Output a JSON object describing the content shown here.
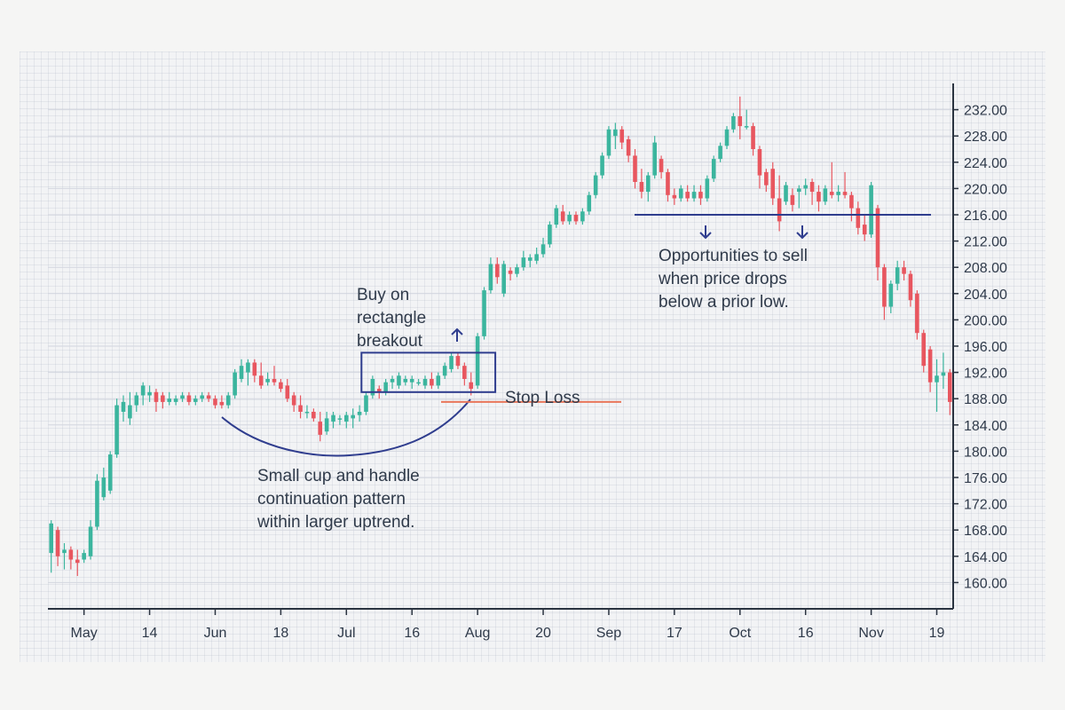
{
  "colors": {
    "up": "#3bb59e",
    "down": "#e8565f",
    "annotation": "#2f3d8e",
    "stop_loss": "#e8765a",
    "gridline": "#d3d6df",
    "axis": "#2a3340",
    "text": "#2f3a4a"
  },
  "chart_data": {
    "type": "candlestick",
    "title": "",
    "xlabel": "",
    "ylabel": "",
    "ylim": [
      156,
      236
    ],
    "y_ticks": [
      160,
      164,
      168,
      172,
      176,
      180,
      184,
      188,
      192,
      196,
      200,
      204,
      208,
      212,
      216,
      220,
      224,
      228,
      232
    ],
    "y_tick_labels": [
      "160.00",
      "164.00",
      "168.00",
      "172.00",
      "176.00",
      "180.00",
      "184.00",
      "188.00",
      "192.00",
      "196.00",
      "200.00",
      "204.00",
      "208.00",
      "212.00",
      "216.00",
      "220.00",
      "224.00",
      "228.00",
      "232.00"
    ],
    "x_ticks": [
      {
        "label": "May",
        "index": 5
      },
      {
        "label": "14",
        "index": 15
      },
      {
        "label": "Jun",
        "index": 25
      },
      {
        "label": "18",
        "index": 35
      },
      {
        "label": "Jul",
        "index": 45
      },
      {
        "label": "16",
        "index": 55
      },
      {
        "label": "Aug",
        "index": 65
      },
      {
        "label": "20",
        "index": 75
      },
      {
        "label": "Sep",
        "index": 85
      },
      {
        "label": "17",
        "index": 95
      },
      {
        "label": "Oct",
        "index": 105
      },
      {
        "label": "16",
        "index": 115
      },
      {
        "label": "Nov",
        "index": 125
      },
      {
        "label": "19",
        "index": 135
      }
    ],
    "candles": [
      {
        "o": 164.5,
        "h": 169.5,
        "l": 161.5,
        "c": 169.0
      },
      {
        "o": 168.0,
        "h": 168.5,
        "l": 162.5,
        "c": 164.0
      },
      {
        "o": 164.5,
        "h": 166.0,
        "l": 162.0,
        "c": 165.0
      },
      {
        "o": 165.0,
        "h": 165.5,
        "l": 162.0,
        "c": 163.5
      },
      {
        "o": 163.5,
        "h": 165.0,
        "l": 161.0,
        "c": 163.0
      },
      {
        "o": 163.5,
        "h": 165.0,
        "l": 163.0,
        "c": 164.5
      },
      {
        "o": 164.0,
        "h": 169.5,
        "l": 163.5,
        "c": 168.5
      },
      {
        "o": 168.5,
        "h": 176.5,
        "l": 168.0,
        "c": 175.5
      },
      {
        "o": 173.0,
        "h": 177.5,
        "l": 172.5,
        "c": 176.0
      },
      {
        "o": 174.0,
        "h": 180.0,
        "l": 173.5,
        "c": 179.5
      },
      {
        "o": 179.5,
        "h": 188.0,
        "l": 179.0,
        "c": 187.0
      },
      {
        "o": 186.0,
        "h": 188.5,
        "l": 184.5,
        "c": 187.5
      },
      {
        "o": 185.0,
        "h": 189.0,
        "l": 184.0,
        "c": 187.0
      },
      {
        "o": 187.0,
        "h": 189.0,
        "l": 186.0,
        "c": 188.5
      },
      {
        "o": 188.5,
        "h": 190.5,
        "l": 187.0,
        "c": 190.0
      },
      {
        "o": 188.5,
        "h": 190.0,
        "l": 187.5,
        "c": 189.0
      },
      {
        "o": 189.0,
        "h": 189.5,
        "l": 186.0,
        "c": 187.5
      },
      {
        "o": 188.5,
        "h": 189.0,
        "l": 186.5,
        "c": 187.5
      },
      {
        "o": 187.5,
        "h": 189.0,
        "l": 187.0,
        "c": 188.0
      },
      {
        "o": 187.5,
        "h": 188.5,
        "l": 187.0,
        "c": 188.0
      },
      {
        "o": 188.0,
        "h": 189.0,
        "l": 187.5,
        "c": 188.5
      },
      {
        "o": 188.5,
        "h": 189.0,
        "l": 187.0,
        "c": 187.5
      },
      {
        "o": 187.5,
        "h": 188.5,
        "l": 187.0,
        "c": 188.0
      },
      {
        "o": 188.0,
        "h": 189.0,
        "l": 187.5,
        "c": 188.5
      },
      {
        "o": 188.5,
        "h": 189.0,
        "l": 187.5,
        "c": 188.0
      },
      {
        "o": 188.0,
        "h": 188.5,
        "l": 186.5,
        "c": 187.0
      },
      {
        "o": 187.5,
        "h": 188.5,
        "l": 186.5,
        "c": 187.0
      },
      {
        "o": 187.0,
        "h": 189.0,
        "l": 186.5,
        "c": 188.5
      },
      {
        "o": 188.5,
        "h": 192.5,
        "l": 188.0,
        "c": 192.0
      },
      {
        "o": 191.0,
        "h": 194.0,
        "l": 190.5,
        "c": 193.0
      },
      {
        "o": 192.0,
        "h": 194.0,
        "l": 190.0,
        "c": 193.5
      },
      {
        "o": 193.5,
        "h": 194.0,
        "l": 190.5,
        "c": 191.5
      },
      {
        "o": 191.5,
        "h": 193.5,
        "l": 189.5,
        "c": 190.0
      },
      {
        "o": 190.5,
        "h": 192.0,
        "l": 190.0,
        "c": 191.0
      },
      {
        "o": 191.0,
        "h": 193.0,
        "l": 190.0,
        "c": 190.5
      },
      {
        "o": 190.5,
        "h": 191.0,
        "l": 189.0,
        "c": 189.5
      },
      {
        "o": 190.0,
        "h": 191.0,
        "l": 187.5,
        "c": 188.0
      },
      {
        "o": 188.5,
        "h": 189.0,
        "l": 186.0,
        "c": 187.0
      },
      {
        "o": 187.0,
        "h": 188.5,
        "l": 185.0,
        "c": 186.0
      },
      {
        "o": 186.0,
        "h": 187.0,
        "l": 185.0,
        "c": 186.0
      },
      {
        "o": 186.0,
        "h": 186.5,
        "l": 184.5,
        "c": 185.0
      },
      {
        "o": 184.5,
        "h": 186.0,
        "l": 181.5,
        "c": 182.5
      },
      {
        "o": 183.0,
        "h": 186.0,
        "l": 182.5,
        "c": 185.0
      },
      {
        "o": 184.5,
        "h": 186.0,
        "l": 183.5,
        "c": 185.5
      },
      {
        "o": 185.0,
        "h": 185.5,
        "l": 184.0,
        "c": 185.0
      },
      {
        "o": 184.5,
        "h": 186.0,
        "l": 183.5,
        "c": 185.5
      },
      {
        "o": 185.0,
        "h": 186.5,
        "l": 183.5,
        "c": 185.5
      },
      {
        "o": 185.5,
        "h": 187.0,
        "l": 184.5,
        "c": 186.0
      },
      {
        "o": 186.0,
        "h": 189.0,
        "l": 185.5,
        "c": 188.5
      },
      {
        "o": 188.5,
        "h": 191.5,
        "l": 188.0,
        "c": 191.0
      },
      {
        "o": 189.5,
        "h": 190.0,
        "l": 188.0,
        "c": 189.0
      },
      {
        "o": 189.0,
        "h": 191.0,
        "l": 188.5,
        "c": 190.5
      },
      {
        "o": 190.5,
        "h": 191.5,
        "l": 189.5,
        "c": 191.0
      },
      {
        "o": 190.0,
        "h": 192.0,
        "l": 189.5,
        "c": 191.5
      },
      {
        "o": 190.5,
        "h": 191.5,
        "l": 190.0,
        "c": 191.0
      },
      {
        "o": 190.5,
        "h": 191.5,
        "l": 189.5,
        "c": 191.0
      },
      {
        "o": 190.5,
        "h": 191.0,
        "l": 190.0,
        "c": 190.5
      },
      {
        "o": 190.0,
        "h": 191.5,
        "l": 189.5,
        "c": 191.0
      },
      {
        "o": 191.0,
        "h": 192.0,
        "l": 189.5,
        "c": 190.0
      },
      {
        "o": 190.0,
        "h": 192.0,
        "l": 189.5,
        "c": 191.5
      },
      {
        "o": 191.5,
        "h": 193.5,
        "l": 191.0,
        "c": 193.0
      },
      {
        "o": 192.5,
        "h": 195.0,
        "l": 192.0,
        "c": 194.5
      },
      {
        "o": 194.5,
        "h": 195.0,
        "l": 192.5,
        "c": 193.0
      },
      {
        "o": 193.0,
        "h": 193.5,
        "l": 190.0,
        "c": 191.0
      },
      {
        "o": 190.5,
        "h": 192.0,
        "l": 188.5,
        "c": 189.5
      },
      {
        "o": 190.0,
        "h": 198.0,
        "l": 189.5,
        "c": 197.5
      },
      {
        "o": 197.5,
        "h": 205.0,
        "l": 197.0,
        "c": 204.5
      },
      {
        "o": 204.5,
        "h": 209.5,
        "l": 204.0,
        "c": 208.5
      },
      {
        "o": 208.5,
        "h": 209.5,
        "l": 205.5,
        "c": 206.5
      },
      {
        "o": 204.0,
        "h": 209.0,
        "l": 203.5,
        "c": 208.5
      },
      {
        "o": 207.5,
        "h": 208.0,
        "l": 206.0,
        "c": 207.0
      },
      {
        "o": 207.0,
        "h": 208.5,
        "l": 206.5,
        "c": 208.0
      },
      {
        "o": 208.0,
        "h": 210.5,
        "l": 207.5,
        "c": 209.5
      },
      {
        "o": 209.0,
        "h": 210.0,
        "l": 208.0,
        "c": 209.5
      },
      {
        "o": 209.0,
        "h": 211.0,
        "l": 208.5,
        "c": 210.0
      },
      {
        "o": 210.0,
        "h": 212.5,
        "l": 209.5,
        "c": 211.5
      },
      {
        "o": 211.5,
        "h": 215.0,
        "l": 211.0,
        "c": 214.5
      },
      {
        "o": 214.5,
        "h": 217.5,
        "l": 214.0,
        "c": 217.0
      },
      {
        "o": 216.5,
        "h": 217.5,
        "l": 214.5,
        "c": 215.0
      },
      {
        "o": 215.0,
        "h": 216.5,
        "l": 214.5,
        "c": 216.0
      },
      {
        "o": 216.0,
        "h": 216.5,
        "l": 214.5,
        "c": 215.0
      },
      {
        "o": 215.0,
        "h": 217.0,
        "l": 214.5,
        "c": 216.5
      },
      {
        "o": 216.5,
        "h": 219.5,
        "l": 216.0,
        "c": 219.0
      },
      {
        "o": 219.0,
        "h": 222.5,
        "l": 218.5,
        "c": 222.0
      },
      {
        "o": 222.0,
        "h": 225.5,
        "l": 221.5,
        "c": 225.0
      },
      {
        "o": 225.0,
        "h": 229.5,
        "l": 224.5,
        "c": 229.0
      },
      {
        "o": 228.0,
        "h": 230.0,
        "l": 226.0,
        "c": 229.0
      },
      {
        "o": 229.0,
        "h": 229.5,
        "l": 226.0,
        "c": 227.0
      },
      {
        "o": 227.5,
        "h": 228.0,
        "l": 224.0,
        "c": 225.0
      },
      {
        "o": 225.0,
        "h": 226.0,
        "l": 220.0,
        "c": 221.0
      },
      {
        "o": 221.0,
        "h": 223.0,
        "l": 218.5,
        "c": 219.5
      },
      {
        "o": 219.5,
        "h": 222.5,
        "l": 218.0,
        "c": 222.0
      },
      {
        "o": 222.0,
        "h": 228.0,
        "l": 221.5,
        "c": 227.0
      },
      {
        "o": 224.5,
        "h": 225.0,
        "l": 221.5,
        "c": 222.5
      },
      {
        "o": 222.5,
        "h": 223.0,
        "l": 218.0,
        "c": 219.0
      },
      {
        "o": 219.0,
        "h": 220.0,
        "l": 217.5,
        "c": 218.5
      },
      {
        "o": 218.5,
        "h": 220.5,
        "l": 218.0,
        "c": 220.0
      },
      {
        "o": 219.5,
        "h": 220.5,
        "l": 218.0,
        "c": 218.5
      },
      {
        "o": 218.5,
        "h": 220.5,
        "l": 218.0,
        "c": 219.5
      },
      {
        "o": 219.5,
        "h": 220.5,
        "l": 217.5,
        "c": 218.5
      },
      {
        "o": 218.5,
        "h": 222.0,
        "l": 218.0,
        "c": 221.5
      },
      {
        "o": 221.5,
        "h": 225.0,
        "l": 221.0,
        "c": 224.5
      },
      {
        "o": 224.5,
        "h": 227.0,
        "l": 224.0,
        "c": 226.5
      },
      {
        "o": 226.5,
        "h": 229.5,
        "l": 226.0,
        "c": 229.0
      },
      {
        "o": 229.0,
        "h": 231.5,
        "l": 228.5,
        "c": 231.0
      },
      {
        "o": 231.0,
        "h": 234.0,
        "l": 227.5,
        "c": 229.5
      },
      {
        "o": 229.5,
        "h": 232.0,
        "l": 229.0,
        "c": 229.5
      },
      {
        "o": 229.5,
        "h": 230.0,
        "l": 225.0,
        "c": 226.0
      },
      {
        "o": 226.0,
        "h": 226.5,
        "l": 220.0,
        "c": 222.0
      },
      {
        "o": 222.5,
        "h": 223.0,
        "l": 219.5,
        "c": 220.5
      },
      {
        "o": 223.0,
        "h": 224.0,
        "l": 217.5,
        "c": 218.5
      },
      {
        "o": 218.5,
        "h": 222.0,
        "l": 213.5,
        "c": 215.0
      },
      {
        "o": 218.0,
        "h": 221.0,
        "l": 217.5,
        "c": 220.5
      },
      {
        "o": 219.0,
        "h": 220.0,
        "l": 216.5,
        "c": 217.5
      },
      {
        "o": 219.5,
        "h": 220.5,
        "l": 217.0,
        "c": 220.0
      },
      {
        "o": 220.0,
        "h": 221.5,
        "l": 219.0,
        "c": 220.5
      },
      {
        "o": 221.0,
        "h": 221.5,
        "l": 217.5,
        "c": 219.5
      },
      {
        "o": 219.5,
        "h": 220.5,
        "l": 216.5,
        "c": 218.0
      },
      {
        "o": 218.0,
        "h": 220.5,
        "l": 217.5,
        "c": 220.0
      },
      {
        "o": 219.5,
        "h": 224.0,
        "l": 218.5,
        "c": 219.0
      },
      {
        "o": 219.0,
        "h": 220.5,
        "l": 218.0,
        "c": 219.5
      },
      {
        "o": 219.5,
        "h": 222.5,
        "l": 218.5,
        "c": 219.0
      },
      {
        "o": 219.0,
        "h": 219.5,
        "l": 215.0,
        "c": 217.0
      },
      {
        "o": 217.0,
        "h": 218.0,
        "l": 213.0,
        "c": 214.0
      },
      {
        "o": 214.5,
        "h": 216.0,
        "l": 212.0,
        "c": 213.0
      },
      {
        "o": 213.0,
        "h": 221.0,
        "l": 212.5,
        "c": 220.5
      },
      {
        "o": 217.0,
        "h": 217.5,
        "l": 206.0,
        "c": 208.0
      },
      {
        "o": 208.0,
        "h": 208.5,
        "l": 200.0,
        "c": 202.0
      },
      {
        "o": 202.0,
        "h": 206.0,
        "l": 201.0,
        "c": 205.5
      },
      {
        "o": 205.5,
        "h": 209.0,
        "l": 204.5,
        "c": 208.0
      },
      {
        "o": 208.0,
        "h": 209.0,
        "l": 206.0,
        "c": 207.0
      },
      {
        "o": 207.0,
        "h": 207.5,
        "l": 202.0,
        "c": 203.0
      },
      {
        "o": 204.0,
        "h": 204.5,
        "l": 197.0,
        "c": 198.0
      },
      {
        "o": 198.0,
        "h": 198.5,
        "l": 192.0,
        "c": 193.0
      },
      {
        "o": 195.5,
        "h": 196.0,
        "l": 189.0,
        "c": 190.5
      },
      {
        "o": 190.5,
        "h": 194.0,
        "l": 186.0,
        "c": 191.5
      },
      {
        "o": 191.5,
        "h": 195.0,
        "l": 189.5,
        "c": 192.0
      },
      {
        "o": 192.0,
        "h": 192.5,
        "l": 185.5,
        "c": 187.5
      }
    ]
  },
  "annotations": {
    "buy_lines": [
      "Buy on",
      "rectangle",
      "breakout"
    ],
    "stop_loss_label": "Stop Loss",
    "cup_lines": [
      "Small cup and handle",
      "continuation pattern",
      "within larger uptrend."
    ],
    "sell_lines": [
      "Opportunities to sell",
      "when price drops",
      "below a prior low."
    ],
    "prior_low_level": 216,
    "stop_loss_level": 187.5,
    "rectangle_range": {
      "start_index": 48,
      "end_index": 67,
      "low": 189,
      "high": 195
    }
  }
}
